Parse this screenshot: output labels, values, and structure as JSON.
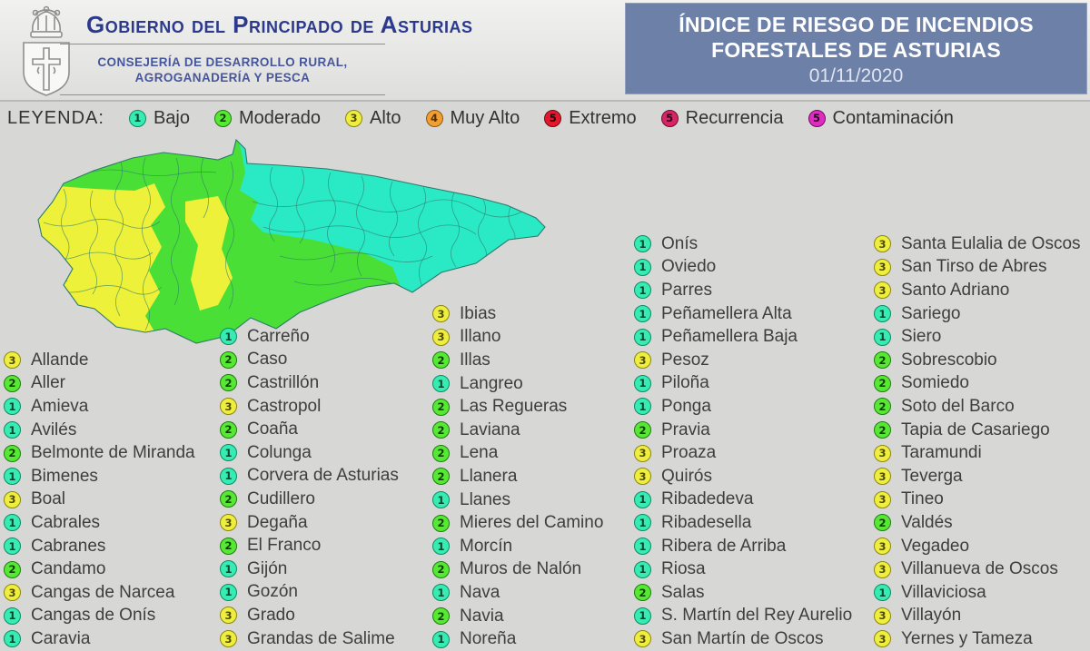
{
  "header": {
    "government_title": "Gobierno del Principado de Asturias",
    "department_line1": "CONSEJERÍA DE DESARROLLO RURAL,",
    "department_line2": "AGROGANADERÍA Y PESCA",
    "title_box": {
      "line1": "ÍNDICE DE RIESGO DE INCENDIOS",
      "line2": "FORESTALES DE ASTURIAS",
      "date": "01/11/2020",
      "bg_color": "#6d80a8"
    }
  },
  "legend": {
    "label": "LEYENDA:",
    "items": [
      {
        "num": "1",
        "label": "Bajo",
        "color": "#36ecb2",
        "border": "#0c8a64",
        "num_color": "#07402e"
      },
      {
        "num": "2",
        "label": "Moderado",
        "color": "#57e833",
        "border": "#1d7c10",
        "num_color": "#0d3f06"
      },
      {
        "num": "3",
        "label": "Alto",
        "color": "#efee3e",
        "border": "#88870f",
        "num_color": "#4d4c08"
      },
      {
        "num": "4",
        "label": "Muy Alto",
        "color": "#f19f31",
        "border": "#8f5a0e",
        "num_color": "#4d3007"
      },
      {
        "num": "5",
        "label": "Extremo",
        "color": "#e4182c",
        "border": "#6e0a12",
        "num_color": "#2d0307"
      },
      {
        "num": "5",
        "label": "Recurrencia",
        "color": "#d52565",
        "border": "#6b0d30",
        "num_color": "#30041a"
      },
      {
        "num": "5",
        "label": "Contaminación",
        "color": "#de2bc0",
        "border": "#6e0e60",
        "num_color": "#310426"
      }
    ]
  },
  "map": {
    "description": "choropleth of Asturias municipal fire risk: west=Alto(yellow), centre=Moderado(green), east=Bajo(cyan)",
    "zone_colors": {
      "bajo": "#2ae9c5",
      "moderado": "#49df36",
      "alto": "#edf13a"
    },
    "border_color": "#2e7a6a"
  },
  "municipalities": {
    "columns": [
      {
        "items": [
          {
            "level": 3,
            "name": "Allande"
          },
          {
            "level": 2,
            "name": "Aller"
          },
          {
            "level": 1,
            "name": "Amieva"
          },
          {
            "level": 1,
            "name": "Avilés"
          },
          {
            "level": 2,
            "name": "Belmonte de Miranda"
          },
          {
            "level": 1,
            "name": "Bimenes"
          },
          {
            "level": 3,
            "name": "Boal"
          },
          {
            "level": 1,
            "name": "Cabrales"
          },
          {
            "level": 1,
            "name": "Cabranes"
          },
          {
            "level": 2,
            "name": "Candamo"
          },
          {
            "level": 3,
            "name": "Cangas de Narcea"
          },
          {
            "level": 1,
            "name": "Cangas de Onís"
          },
          {
            "level": 1,
            "name": "Caravia"
          }
        ]
      },
      {
        "items": [
          {
            "level": 1,
            "name": "Carreño"
          },
          {
            "level": 2,
            "name": "Caso"
          },
          {
            "level": 2,
            "name": "Castrillón"
          },
          {
            "level": 3,
            "name": "Castropol"
          },
          {
            "level": 2,
            "name": "Coaña"
          },
          {
            "level": 1,
            "name": "Colunga"
          },
          {
            "level": 1,
            "name": "Corvera de Asturias"
          },
          {
            "level": 2,
            "name": "Cudillero"
          },
          {
            "level": 3,
            "name": "Degaña"
          },
          {
            "level": 2,
            "name": "El Franco"
          },
          {
            "level": 1,
            "name": "Gijón"
          },
          {
            "level": 1,
            "name": "Gozón"
          },
          {
            "level": 3,
            "name": "Grado"
          },
          {
            "level": 3,
            "name": "Grandas de Salime"
          }
        ]
      },
      {
        "items": [
          {
            "level": 3,
            "name": "Ibias"
          },
          {
            "level": 3,
            "name": "Illano"
          },
          {
            "level": 2,
            "name": "Illas"
          },
          {
            "level": 1,
            "name": "Langreo"
          },
          {
            "level": 2,
            "name": "Las Regueras"
          },
          {
            "level": 2,
            "name": "Laviana"
          },
          {
            "level": 2,
            "name": "Lena"
          },
          {
            "level": 2,
            "name": "Llanera"
          },
          {
            "level": 1,
            "name": "Llanes"
          },
          {
            "level": 2,
            "name": "Mieres del Camino"
          },
          {
            "level": 1,
            "name": "Morcín"
          },
          {
            "level": 2,
            "name": "Muros de Nalón"
          },
          {
            "level": 1,
            "name": "Nava"
          },
          {
            "level": 2,
            "name": "Navia"
          },
          {
            "level": 1,
            "name": "Noreña"
          }
        ]
      },
      {
        "items": [
          {
            "level": 1,
            "name": "Onís"
          },
          {
            "level": 1,
            "name": "Oviedo"
          },
          {
            "level": 1,
            "name": "Parres"
          },
          {
            "level": 1,
            "name": "Peñamellera Alta"
          },
          {
            "level": 1,
            "name": "Peñamellera Baja"
          },
          {
            "level": 3,
            "name": "Pesoz"
          },
          {
            "level": 1,
            "name": "Piloña"
          },
          {
            "level": 1,
            "name": "Ponga"
          },
          {
            "level": 2,
            "name": "Pravia"
          },
          {
            "level": 3,
            "name": "Proaza"
          },
          {
            "level": 3,
            "name": "Quirós"
          },
          {
            "level": 1,
            "name": "Ribadedeva"
          },
          {
            "level": 1,
            "name": "Ribadesella"
          },
          {
            "level": 1,
            "name": "Ribera de Arriba"
          },
          {
            "level": 1,
            "name": "Riosa"
          },
          {
            "level": 2,
            "name": "Salas"
          },
          {
            "level": 1,
            "name": "S. Martín del Rey Aurelio"
          },
          {
            "level": 3,
            "name": "San Martín de Oscos"
          }
        ]
      },
      {
        "items": [
          {
            "level": 3,
            "name": "Santa Eulalia de Oscos"
          },
          {
            "level": 3,
            "name": "San Tirso de Abres"
          },
          {
            "level": 3,
            "name": "Santo Adriano"
          },
          {
            "level": 1,
            "name": "Sariego"
          },
          {
            "level": 1,
            "name": "Siero"
          },
          {
            "level": 2,
            "name": "Sobrescobio"
          },
          {
            "level": 2,
            "name": "Somiedo"
          },
          {
            "level": 2,
            "name": "Soto del Barco"
          },
          {
            "level": 2,
            "name": "Tapia de Casariego"
          },
          {
            "level": 3,
            "name": "Taramundi"
          },
          {
            "level": 3,
            "name": "Teverga"
          },
          {
            "level": 3,
            "name": "Tineo"
          },
          {
            "level": 2,
            "name": "Valdés"
          },
          {
            "level": 3,
            "name": "Vegadeo"
          },
          {
            "level": 3,
            "name": "Villanueva de Oscos"
          },
          {
            "level": 1,
            "name": "Villaviciosa"
          },
          {
            "level": 3,
            "name": "Villayón"
          },
          {
            "level": 3,
            "name": "Yernes y Tameza"
          }
        ]
      }
    ]
  }
}
